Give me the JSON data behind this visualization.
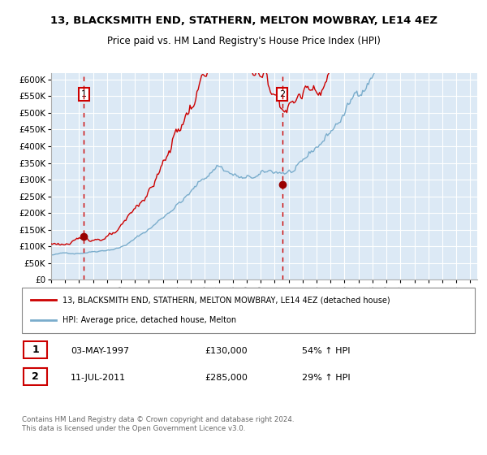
{
  "title": "13, BLACKSMITH END, STATHERN, MELTON MOWBRAY, LE14 4EZ",
  "subtitle": "Price paid vs. HM Land Registry's House Price Index (HPI)",
  "red_line_color": "#cc0000",
  "blue_line_color": "#7aadcc",
  "plot_bg_color": "#dce9f5",
  "grid_color": "#ffffff",
  "dashed_line_color": "#cc0000",
  "marker_color": "#990000",
  "sale1_date": 1997.35,
  "sale1_price": 130000,
  "sale2_date": 2011.53,
  "sale2_price": 285000,
  "ylim": [
    0,
    620000
  ],
  "xlim": [
    1995.0,
    2025.5
  ],
  "yticks": [
    0,
    50000,
    100000,
    150000,
    200000,
    250000,
    300000,
    350000,
    400000,
    450000,
    500000,
    550000,
    600000
  ],
  "xticks": [
    1995,
    1996,
    1997,
    1998,
    1999,
    2000,
    2001,
    2002,
    2003,
    2004,
    2005,
    2006,
    2007,
    2008,
    2009,
    2010,
    2011,
    2012,
    2013,
    2014,
    2015,
    2016,
    2017,
    2018,
    2019,
    2020,
    2021,
    2022,
    2023,
    2024,
    2025
  ],
  "legend_label_red": "13, BLACKSMITH END, STATHERN, MELTON MOWBRAY, LE14 4EZ (detached house)",
  "legend_label_blue": "HPI: Average price, detached house, Melton",
  "footer": "Contains HM Land Registry data © Crown copyright and database right 2024.\nThis data is licensed under the Open Government Licence v3.0."
}
